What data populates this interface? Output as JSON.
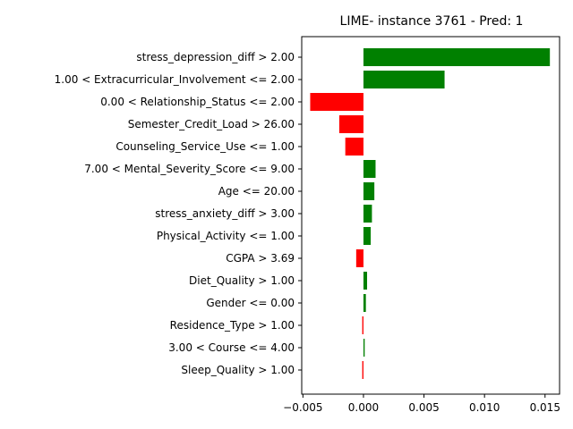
{
  "chart_data": {
    "type": "bar",
    "orientation": "horizontal",
    "title": "LIME- instance 3761 - Pred: 1",
    "xlabel": "",
    "ylabel": "",
    "xlim": [
      -0.0051,
      0.0162
    ],
    "xticks": [
      -0.005,
      0.0,
      0.005,
      0.01,
      0.015
    ],
    "xtick_labels": [
      "−0.005",
      "0.000",
      "0.005",
      "0.010",
      "0.015"
    ],
    "grid": false,
    "positive_color": "#008000",
    "negative_color": "#ff0000",
    "categories": [
      "stress_depression_diff > 2.00",
      "1.00 < Extracurricular_Involvement <= 2.00",
      "0.00 < Relationship_Status <= 2.00",
      "Semester_Credit_Load > 26.00",
      "Counseling_Service_Use <= 1.00",
      "7.00 < Mental_Severity_Score <= 9.00",
      "Age <= 20.00",
      "stress_anxiety_diff > 3.00",
      "Physical_Activity <= 1.00",
      "CGPA > 3.69",
      "Diet_Quality > 1.00",
      "Gender <= 0.00",
      "Residence_Type > 1.00",
      "3.00 < Course <= 4.00",
      "Sleep_Quality > 1.00"
    ],
    "values": [
      0.0154,
      0.0067,
      -0.0044,
      -0.002,
      -0.0015,
      0.001,
      0.0009,
      0.0007,
      0.0006,
      -0.0006,
      0.0003,
      0.0002,
      -0.0001,
      0.0001,
      -0.0001
    ]
  }
}
